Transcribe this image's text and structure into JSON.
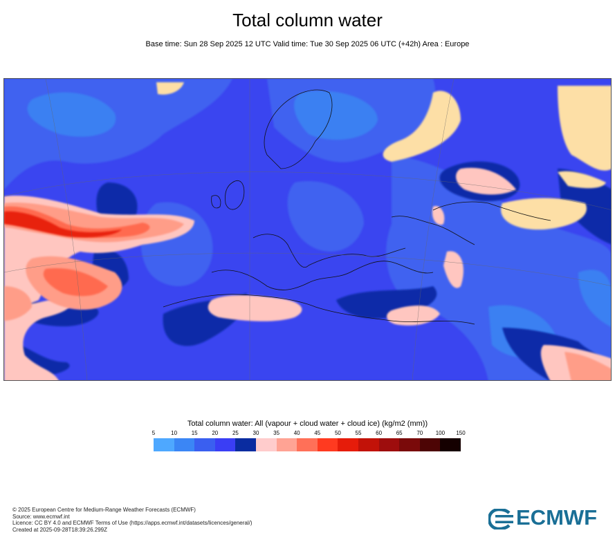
{
  "title": "Total column water",
  "subtitle": "Base time: Sun 28 Sep 2025 12 UTC Valid time: Tue 30 Sep 2025 06 UTC (+42h) Area : Europe",
  "map": {
    "area": "Europe",
    "variable": "Total column water",
    "background_color": "#3f5ef0"
  },
  "legend": {
    "title": "Total column water: All (vapour + cloud water + cloud ice) (kg/m2 (mm))",
    "ticks": [
      "5",
      "10",
      "15",
      "20",
      "25",
      "30",
      "35",
      "40",
      "45",
      "50",
      "55",
      "60",
      "65",
      "70",
      "100",
      "150"
    ],
    "colors": [
      "#4ea8ff",
      "#3b86f5",
      "#3a5ff0",
      "#3a3ef5",
      "#0a2ca0",
      "#ffcccc",
      "#ffa394",
      "#ff7058",
      "#ff3a20",
      "#e61c0a",
      "#c21208",
      "#9e0d0d",
      "#7a0a0a",
      "#4d0505",
      "#150000"
    ]
  },
  "footer": {
    "line1": "© 2025 European Centre for Medium-Range Weather Forecasts (ECMWF)",
    "line2": "Source: www.ecmwf.int",
    "line3": "Licence: CC BY 4.0 and ECMWF Terms of Use (https://apps.ecmwf.int/datasets/licences/general/)",
    "line4": "Created at 2025-09-28T18:39:26.299Z"
  },
  "logo": {
    "text": "ECMWF",
    "color": "#1a6f96"
  }
}
